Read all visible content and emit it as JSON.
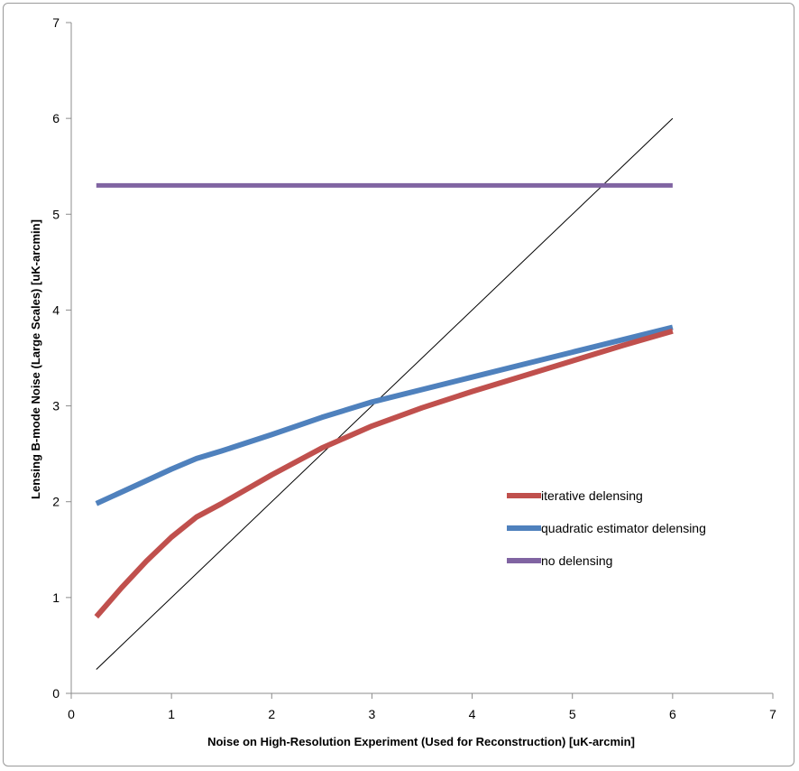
{
  "chart_data": {
    "type": "line",
    "title": "",
    "xlabel": "Noise on High-Resolution Experiment (Used for Reconstruction) [uK-arcmin]",
    "ylabel": "Lensing B-mode Noise (Large Scales) [uK-arcmin]",
    "xlim": [
      0,
      7
    ],
    "ylim": [
      0,
      7
    ],
    "xticks": [
      "0",
      "1",
      "2",
      "3",
      "4",
      "5",
      "6",
      "7"
    ],
    "yticks": [
      "0",
      "1",
      "2",
      "3",
      "4",
      "5",
      "6",
      "7"
    ],
    "grid": false,
    "legend_position": "right-center",
    "series": [
      {
        "name": "iterative delensing",
        "color": "#c0504d",
        "x": [
          0.25,
          0.5,
          0.75,
          1.0,
          1.25,
          1.5,
          2.0,
          2.5,
          3.0,
          3.5,
          4.0,
          4.5,
          5.0,
          5.5,
          6.0
        ],
        "y": [
          0.8,
          1.1,
          1.38,
          1.63,
          1.84,
          1.98,
          2.28,
          2.56,
          2.79,
          2.98,
          3.15,
          3.31,
          3.47,
          3.63,
          3.78
        ]
      },
      {
        "name": "quadratic estimator delensing",
        "color": "#4f81bd",
        "x": [
          0.25,
          0.5,
          0.75,
          1.0,
          1.25,
          1.5,
          2.0,
          2.5,
          3.0,
          3.5,
          4.0,
          4.5,
          5.0,
          5.5,
          6.0
        ],
        "y": [
          1.98,
          2.1,
          2.22,
          2.34,
          2.45,
          2.53,
          2.7,
          2.88,
          3.04,
          3.17,
          3.3,
          3.43,
          3.56,
          3.69,
          3.82
        ]
      },
      {
        "name": "no delensing",
        "color": "#8064a2",
        "x": [
          0.25,
          6.0
        ],
        "y": [
          5.3,
          5.3
        ]
      },
      {
        "name": "",
        "color": "#000000",
        "x": [
          0.25,
          6.0
        ],
        "y": [
          0.25,
          6.0
        ]
      }
    ]
  }
}
